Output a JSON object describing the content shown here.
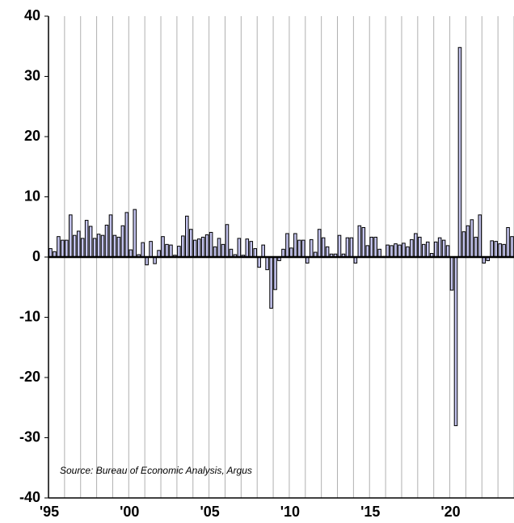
{
  "chart_data": {
    "type": "bar",
    "annotation": "Source: Bureau of Economic Analysis, Argus",
    "categories": [
      "'95",
      null,
      null,
      null,
      null,
      null,
      null,
      null,
      null,
      null,
      null,
      null,
      null,
      null,
      null,
      null,
      null,
      null,
      null,
      null,
      "'00",
      null,
      null,
      null,
      null,
      null,
      null,
      null,
      null,
      null,
      null,
      null,
      null,
      null,
      null,
      null,
      null,
      null,
      null,
      null,
      "'05",
      null,
      null,
      null,
      null,
      null,
      null,
      null,
      null,
      null,
      null,
      null,
      null,
      null,
      null,
      null,
      null,
      null,
      null,
      null,
      "'10",
      null,
      null,
      null,
      null,
      null,
      null,
      null,
      null,
      null,
      null,
      null,
      null,
      null,
      null,
      null,
      null,
      null,
      null,
      null,
      "'15",
      null,
      null,
      null,
      null,
      null,
      null,
      null,
      null,
      null,
      null,
      null,
      null,
      null,
      null,
      null,
      null,
      null,
      null,
      null,
      "'20",
      null,
      null,
      null,
      null,
      null,
      null,
      null,
      null,
      null,
      null,
      null,
      null,
      null,
      null,
      null
    ],
    "values": [
      1.4,
      0.9,
      3.4,
      2.8,
      2.8,
      7.0,
      3.6,
      4.3,
      3.1,
      6.1,
      5.1,
      3.1,
      3.8,
      3.6,
      5.3,
      7.0,
      3.6,
      3.3,
      5.2,
      7.4,
      1.2,
      7.9,
      0.4,
      2.4,
      -1.3,
      2.6,
      -1.1,
      1.1,
      3.4,
      2.1,
      2.0,
      0.3,
      1.8,
      3.5,
      6.8,
      4.6,
      2.8,
      3.0,
      3.3,
      3.7,
      4.1,
      1.7,
      3.1,
      2.1,
      5.4,
      1.3,
      0.4,
      3.1,
      0.3,
      3.0,
      2.6,
      1.4,
      -1.7,
      2.0,
      -2.1,
      -8.5,
      -5.4,
      -0.6,
      1.3,
      3.9,
      1.5,
      3.9,
      2.8,
      2.8,
      -1.0,
      2.9,
      0.8,
      4.6,
      3.2,
      1.7,
      0.5,
      0.5,
      3.6,
      0.5,
      3.2,
      3.2,
      -1.0,
      5.2,
      4.9,
      1.9,
      3.3,
      3.3,
      1.3,
      0.1,
      2.0,
      1.9,
      2.2,
      2.0,
      2.3,
      1.7,
      2.9,
      3.9,
      3.3,
      2.1,
      2.5,
      0.6,
      2.5,
      3.2,
      2.8,
      1.9,
      -5.5,
      -28.0,
      34.8,
      4.2,
      5.2,
      6.2,
      3.3,
      7.0,
      -1.0,
      -0.6,
      2.7,
      2.6,
      2.2,
      2.1,
      4.9,
      3.4
    ],
    "color": "#c4c4ee",
    "ylim": [
      -40,
      40
    ],
    "yticks": [
      -40,
      -30,
      -20,
      -10,
      0,
      10,
      20,
      30,
      40
    ],
    "grid": true
  }
}
